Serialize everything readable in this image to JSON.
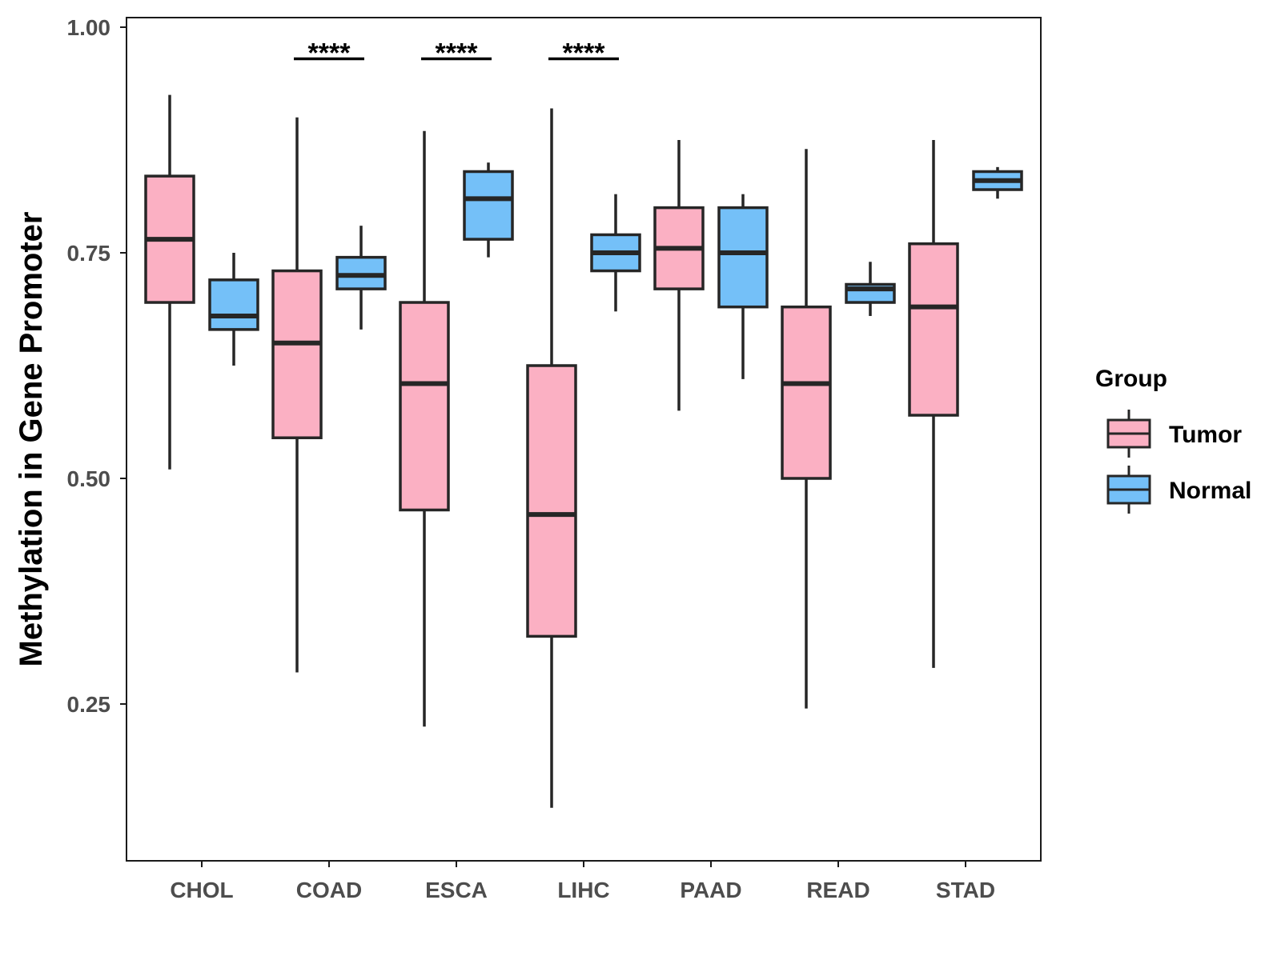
{
  "chart_data": {
    "type": "boxplot",
    "title": "",
    "xlabel": "",
    "ylabel": "Methylation in Gene Promoter",
    "ylim": [
      0.08,
      1.01
    ],
    "yticks": [
      0.25,
      0.5,
      0.75,
      1.0
    ],
    "ytick_labels": [
      "0.25",
      "0.50",
      "0.75",
      "1.00"
    ],
    "categories": [
      "CHOL",
      "COAD",
      "ESCA",
      "LIHC",
      "PAAD",
      "READ",
      "STAD"
    ],
    "legend": {
      "title": "Group",
      "position": "right",
      "entries": [
        {
          "name": "Tumor",
          "color": "#FBB0C3"
        },
        {
          "name": "Normal",
          "color": "#74C0F8"
        }
      ]
    },
    "series": [
      {
        "name": "Tumor",
        "color": "#FBB0C3",
        "boxes": [
          {
            "category": "CHOL",
            "min": 0.51,
            "q1": 0.695,
            "median": 0.765,
            "q3": 0.835,
            "max": 0.925
          },
          {
            "category": "COAD",
            "min": 0.285,
            "q1": 0.545,
            "median": 0.65,
            "q3": 0.73,
            "max": 0.9
          },
          {
            "category": "ESCA",
            "min": 0.225,
            "q1": 0.465,
            "median": 0.605,
            "q3": 0.695,
            "max": 0.885
          },
          {
            "category": "LIHC",
            "min": 0.135,
            "q1": 0.325,
            "median": 0.46,
            "q3": 0.625,
            "max": 0.91
          },
          {
            "category": "PAAD",
            "min": 0.575,
            "q1": 0.71,
            "median": 0.755,
            "q3": 0.8,
            "max": 0.875
          },
          {
            "category": "READ",
            "min": 0.245,
            "q1": 0.5,
            "median": 0.605,
            "q3": 0.69,
            "max": 0.865
          },
          {
            "category": "STAD",
            "min": 0.29,
            "q1": 0.57,
            "median": 0.69,
            "q3": 0.76,
            "max": 0.875
          }
        ]
      },
      {
        "name": "Normal",
        "color": "#74C0F8",
        "boxes": [
          {
            "category": "CHOL",
            "min": 0.625,
            "q1": 0.665,
            "median": 0.68,
            "q3": 0.72,
            "max": 0.75
          },
          {
            "category": "COAD",
            "min": 0.665,
            "q1": 0.71,
            "median": 0.725,
            "q3": 0.745,
            "max": 0.78
          },
          {
            "category": "ESCA",
            "min": 0.745,
            "q1": 0.765,
            "median": 0.81,
            "q3": 0.84,
            "max": 0.85
          },
          {
            "category": "LIHC",
            "min": 0.685,
            "q1": 0.73,
            "median": 0.75,
            "q3": 0.77,
            "max": 0.815
          },
          {
            "category": "PAAD",
            "min": 0.61,
            "q1": 0.69,
            "median": 0.75,
            "q3": 0.8,
            "max": 0.815
          },
          {
            "category": "READ",
            "min": 0.68,
            "q1": 0.695,
            "median": 0.71,
            "q3": 0.715,
            "max": 0.74
          },
          {
            "category": "STAD",
            "min": 0.81,
            "q1": 0.82,
            "median": 0.83,
            "q3": 0.84,
            "max": 0.845
          }
        ]
      }
    ],
    "annotations": [
      {
        "category": "COAD",
        "text": "****",
        "y": 0.965
      },
      {
        "category": "ESCA",
        "text": "****",
        "y": 0.965
      },
      {
        "category": "LIHC",
        "text": "****",
        "y": 0.965
      }
    ]
  }
}
